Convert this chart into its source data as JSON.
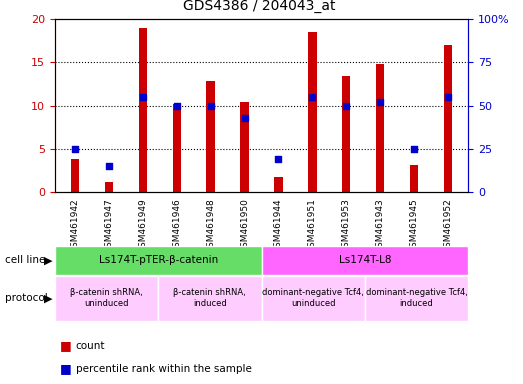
{
  "title": "GDS4386 / 204043_at",
  "samples": [
    "GSM461942",
    "GSM461947",
    "GSM461949",
    "GSM461946",
    "GSM461948",
    "GSM461950",
    "GSM461944",
    "GSM461951",
    "GSM461953",
    "GSM461943",
    "GSM461945",
    "GSM461952"
  ],
  "counts": [
    3.8,
    1.2,
    19.0,
    10.2,
    12.8,
    10.4,
    1.7,
    18.5,
    13.4,
    14.8,
    3.1,
    17.0
  ],
  "percentiles": [
    25,
    15,
    55,
    50,
    50,
    43,
    19,
    55,
    50,
    52,
    25,
    55
  ],
  "ylim_left": [
    0,
    20
  ],
  "ylim_right": [
    0,
    100
  ],
  "yticks_left": [
    0,
    5,
    10,
    15,
    20
  ],
  "yticks_right": [
    0,
    25,
    50,
    75,
    100
  ],
  "bar_color": "#cc0000",
  "dot_color": "#0000cc",
  "bar_width": 0.25,
  "cell_line_groups": [
    {
      "label": "Ls174T-pTER-β-catenin",
      "start": 0,
      "end": 6,
      "color": "#66dd66"
    },
    {
      "label": "Ls174T-L8",
      "start": 6,
      "end": 12,
      "color": "#ff66ff"
    }
  ],
  "protocol_groups": [
    {
      "label": "β-catenin shRNA,\nuninduced",
      "start": 0,
      "end": 3,
      "color": "#ffccff"
    },
    {
      "label": "β-catenin shRNA,\ninduced",
      "start": 3,
      "end": 6,
      "color": "#ffccff"
    },
    {
      "label": "dominant-negative Tcf4,\nuninduced",
      "start": 6,
      "end": 9,
      "color": "#ffccff"
    },
    {
      "label": "dominant-negative Tcf4,\ninduced",
      "start": 9,
      "end": 12,
      "color": "#ffccff"
    }
  ],
  "cell_line_label": "cell line",
  "protocol_label": "protocol",
  "legend_count_label": "count",
  "legend_pct_label": "percentile rank within the sample",
  "tick_color_left": "#cc0000",
  "tick_color_right": "#0000cc",
  "sample_bg_color": "#cccccc",
  "chart_bg_color": "#ffffff"
}
